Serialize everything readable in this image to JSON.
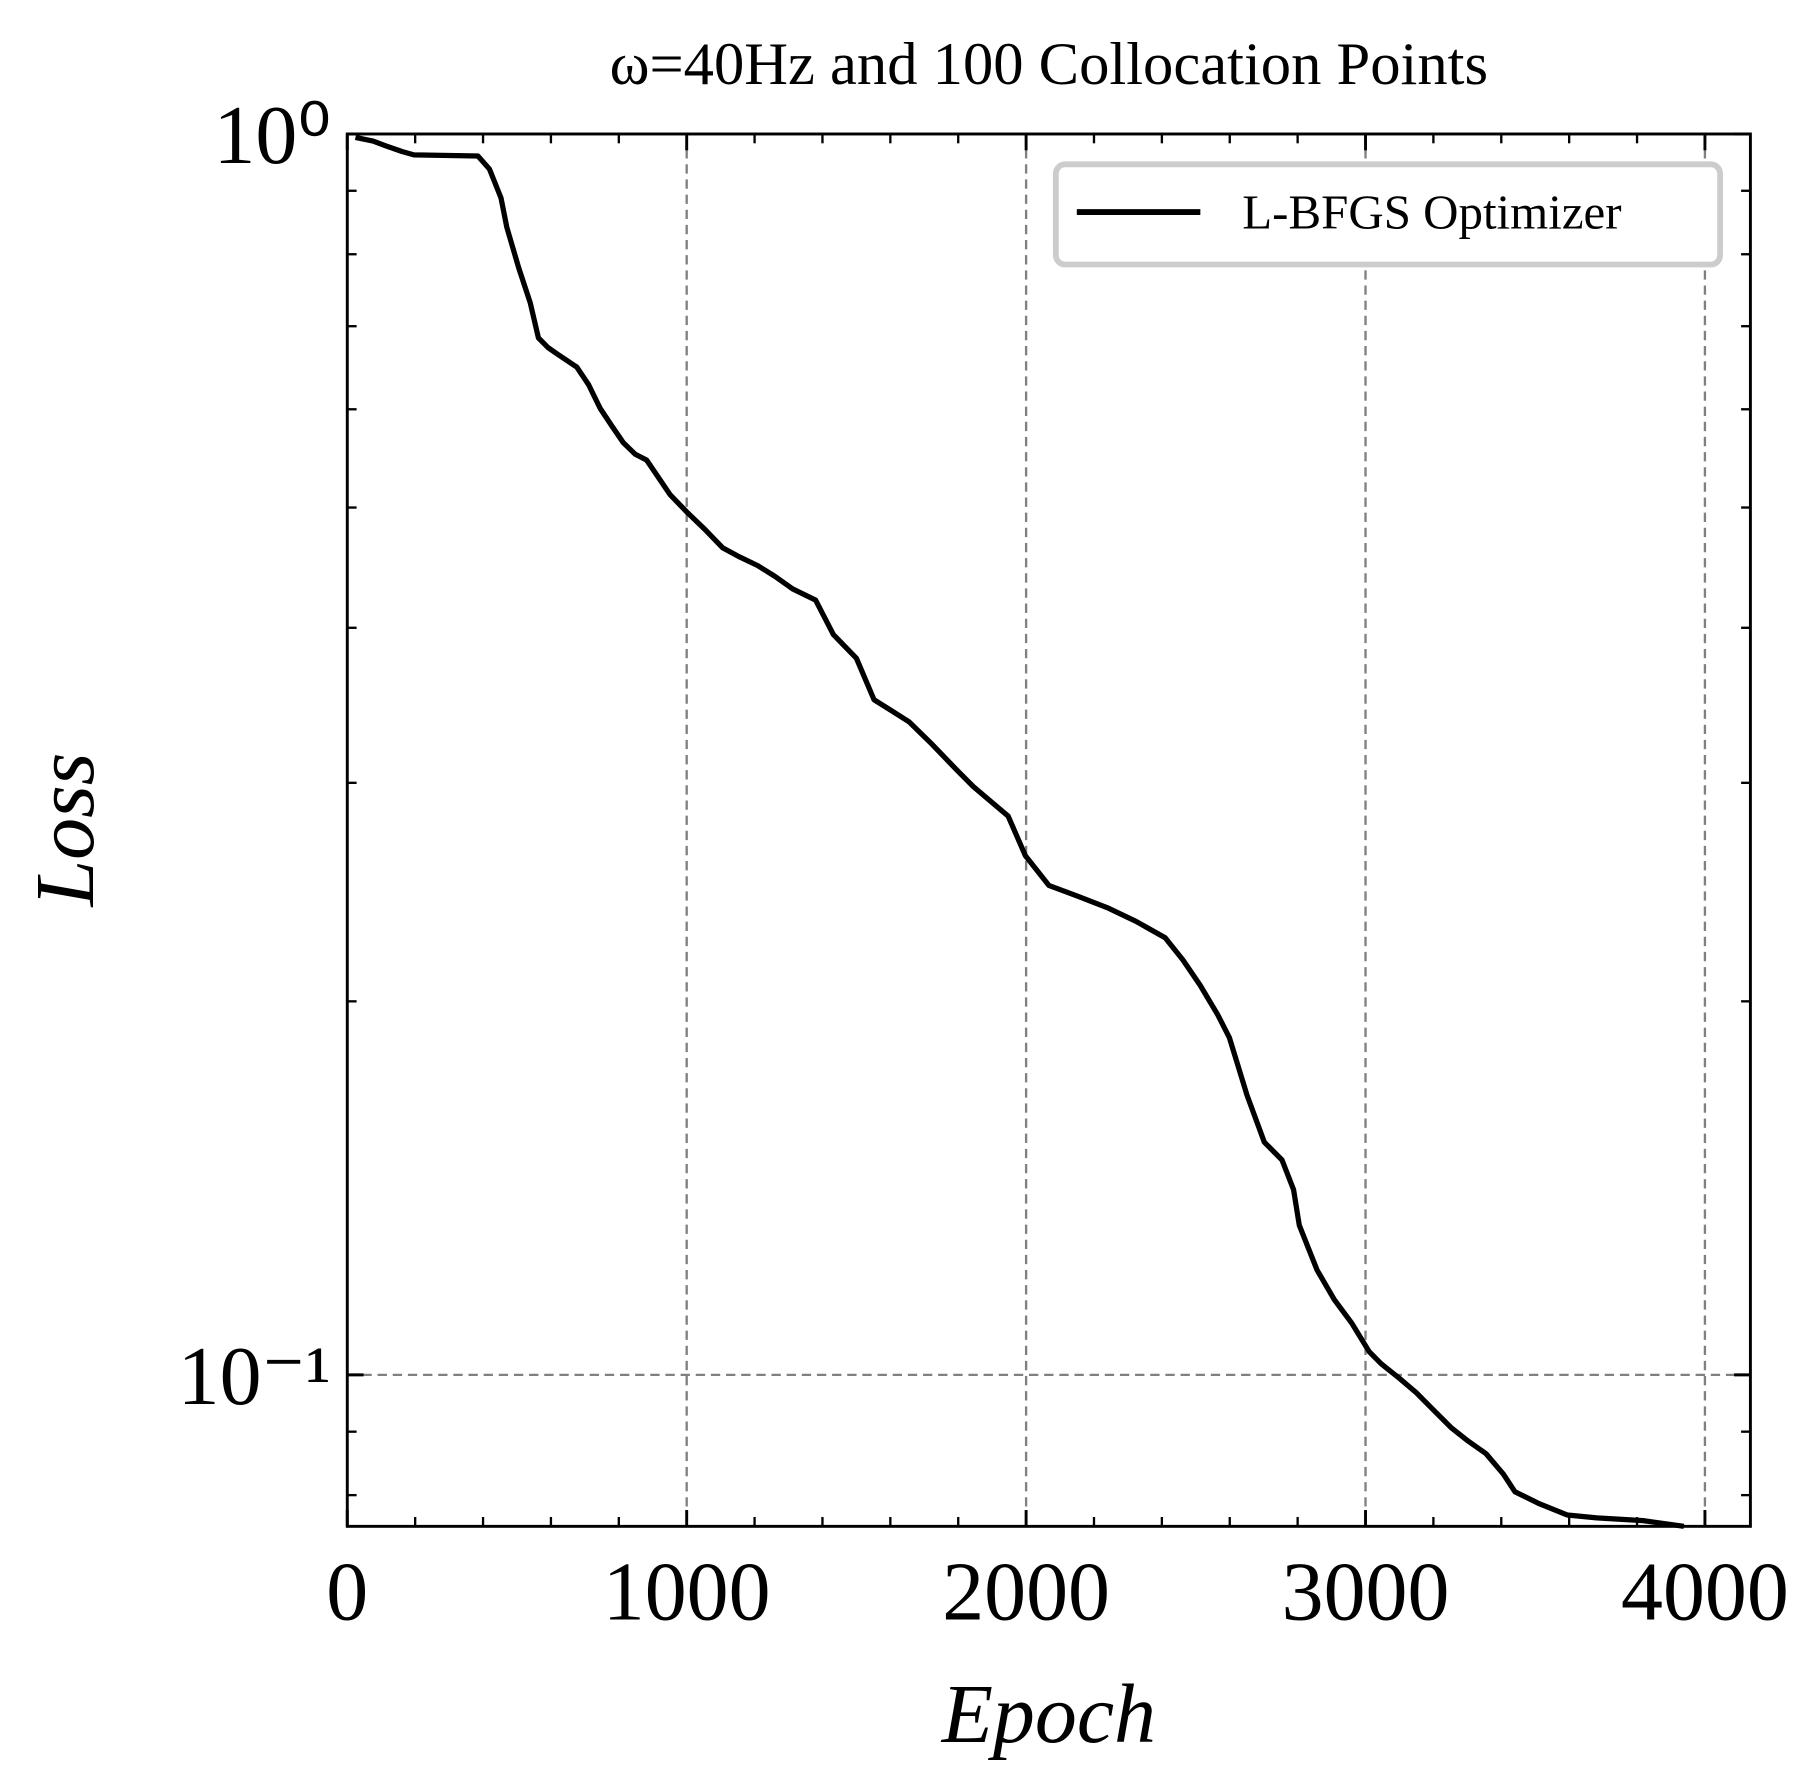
{
  "chart_data": {
    "type": "line",
    "title": "ω=40Hz and 100 Collocation Points",
    "x_label": "Epoch",
    "y_label": "Loss",
    "log_y": true,
    "grid": true,
    "legend_position": "upper right",
    "xlim": [
      0,
      4134
    ],
    "ylim": [
      0.0755,
      1
    ],
    "xticks": [
      0,
      1000,
      2000,
      3000,
      4000
    ],
    "xminorticks": [
      200,
      400,
      600,
      800,
      1200,
      1400,
      1600,
      1800,
      2200,
      2400,
      2600,
      2800,
      3200,
      3400,
      3600,
      3800
    ],
    "yticks": [
      {
        "value": 0.1,
        "label": "10⁻¹"
      },
      {
        "value": 1,
        "label": "10⁰"
      }
    ],
    "yminorticks": [
      0.08,
      0.09,
      0.2,
      0.3,
      0.4,
      0.5,
      0.6,
      0.7,
      0.8,
      0.9
    ],
    "x": [
      24,
      76,
      110,
      161,
      196,
      385,
      419,
      453,
      470,
      505,
      539,
      563,
      591,
      625,
      676,
      711,
      745,
      779,
      813,
      848,
      882,
      916,
      951,
      1003,
      1054,
      1106,
      1157,
      1209,
      1260,
      1312,
      1380,
      1432,
      1500,
      1552,
      1603,
      1655,
      1724,
      1792,
      1844,
      1895,
      1947,
      1998,
      2067,
      2153,
      2239,
      2324,
      2410,
      2462,
      2513,
      2565,
      2599,
      2651,
      2702,
      2754,
      2788,
      2805,
      2857,
      2908,
      2960,
      3011,
      3046,
      3097,
      3149,
      3200,
      3252,
      3303,
      3355,
      3406,
      3440,
      3509,
      3595,
      3681,
      3818,
      3938
    ],
    "series": [
      {
        "name": "L-BFGS Optimizer",
        "color": "#000000",
        "values": [
          0.9935,
          0.987,
          0.979,
          0.968,
          0.962,
          0.96,
          0.937,
          0.888,
          0.841,
          0.78,
          0.731,
          0.685,
          0.673,
          0.663,
          0.649,
          0.628,
          0.601,
          0.582,
          0.564,
          0.552,
          0.546,
          0.529,
          0.512,
          0.495,
          0.48,
          0.464,
          0.456,
          0.449,
          0.44,
          0.43,
          0.421,
          0.395,
          0.378,
          0.35,
          0.343,
          0.336,
          0.322,
          0.308,
          0.298,
          0.29,
          0.282,
          0.262,
          0.248,
          0.243,
          0.238,
          0.232,
          0.225,
          0.216,
          0.206,
          0.195,
          0.187,
          0.168,
          0.154,
          0.149,
          0.141,
          0.132,
          0.1215,
          0.115,
          0.11,
          0.1044,
          0.1021,
          0.0995,
          0.0968,
          0.0937,
          0.0907,
          0.0884,
          0.0864,
          0.0832,
          0.0805,
          0.0788,
          0.0771,
          0.0767,
          0.0763,
          0.0755
        ]
      }
    ]
  }
}
